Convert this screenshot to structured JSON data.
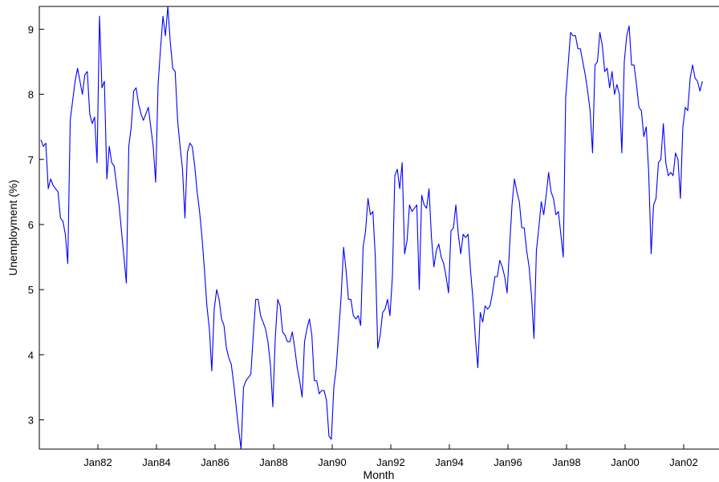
{
  "chart_data": {
    "type": "line",
    "xlabel": "Month",
    "ylabel": "Unemployment (%)",
    "xlim": [
      "1980-01",
      "2002-12"
    ],
    "ylim": [
      2.55,
      9.35
    ],
    "yticks": [
      3,
      4,
      5,
      6,
      7,
      8,
      9
    ],
    "xticks": [
      {
        "label": "Jan82",
        "date": "1982-01"
      },
      {
        "label": "Jan84",
        "date": "1984-01"
      },
      {
        "label": "Jan86",
        "date": "1986-01"
      },
      {
        "label": "Jan88",
        "date": "1988-01"
      },
      {
        "label": "Jan90",
        "date": "1990-01"
      },
      {
        "label": "Jan92",
        "date": "1992-01"
      },
      {
        "label": "Jan94",
        "date": "1994-01"
      },
      {
        "label": "Jan96",
        "date": "1996-01"
      },
      {
        "label": "Jan98",
        "date": "1998-01"
      },
      {
        "label": "Jan00",
        "date": "2000-01"
      },
      {
        "label": "Jan02",
        "date": "2002-01"
      }
    ],
    "grid": false,
    "color": "#0000ff",
    "series": [
      {
        "start": "1980-01",
        "frequency": "monthly",
        "values": [
          7.3,
          7.2,
          7.25,
          6.55,
          6.7,
          6.6,
          6.55,
          6.5,
          6.1,
          6.05,
          5.85,
          5.4,
          7.6,
          7.9,
          8.2,
          8.4,
          8.2,
          8.0,
          8.3,
          8.35,
          7.7,
          7.55,
          7.65,
          6.95,
          9.2,
          8.1,
          8.2,
          6.7,
          7.2,
          6.95,
          6.9,
          6.6,
          6.3,
          5.9,
          5.5,
          5.1,
          7.2,
          7.5,
          8.05,
          8.1,
          7.85,
          7.7,
          7.6,
          7.7,
          7.8,
          7.5,
          7.2,
          6.65,
          8.15,
          8.7,
          9.2,
          8.9,
          9.35,
          8.8,
          8.4,
          8.35,
          7.6,
          7.2,
          6.85,
          6.1,
          7.1,
          7.25,
          7.2,
          6.9,
          6.5,
          6.2,
          5.8,
          5.3,
          4.75,
          4.4,
          3.75,
          4.7,
          5.0,
          4.85,
          4.55,
          4.45,
          4.1,
          3.95,
          3.85,
          3.55,
          3.2,
          2.85,
          2.55,
          3.5,
          3.6,
          3.65,
          3.7,
          4.3,
          4.85,
          4.85,
          4.6,
          4.5,
          4.4,
          4.2,
          3.85,
          3.2,
          4.25,
          4.85,
          4.75,
          4.35,
          4.3,
          4.2,
          4.2,
          4.35,
          4.1,
          3.8,
          3.6,
          3.35,
          4.2,
          4.4,
          4.55,
          4.3,
          3.6,
          3.6,
          3.4,
          3.45,
          3.45,
          3.3,
          2.75,
          2.7,
          3.5,
          3.8,
          4.35,
          4.9,
          5.65,
          5.3,
          4.85,
          4.85,
          4.6,
          4.55,
          4.6,
          4.45,
          5.65,
          5.9,
          6.4,
          6.15,
          6.2,
          5.5,
          4.1,
          4.3,
          4.65,
          4.7,
          4.85,
          4.6,
          5.2,
          6.75,
          6.85,
          6.55,
          6.95,
          5.55,
          5.75,
          6.3,
          6.2,
          6.25,
          6.3,
          5.0,
          6.45,
          6.3,
          6.25,
          6.55,
          5.8,
          5.35,
          5.6,
          5.7,
          5.5,
          5.4,
          5.2,
          4.95,
          5.9,
          5.95,
          6.3,
          5.85,
          5.55,
          5.85,
          5.8,
          5.85,
          5.3,
          4.85,
          4.25,
          3.8,
          4.65,
          4.5,
          4.75,
          4.7,
          4.75,
          4.95,
          5.2,
          5.2,
          5.45,
          5.35,
          5.2,
          4.95,
          5.65,
          6.3,
          6.7,
          6.5,
          6.35,
          5.95,
          5.95,
          5.6,
          5.35,
          4.9,
          4.25,
          5.6,
          5.95,
          6.35,
          6.15,
          6.45,
          6.8,
          6.5,
          6.4,
          6.15,
          6.2,
          5.85,
          5.5,
          7.95,
          8.45,
          8.95,
          8.9,
          8.9,
          8.7,
          8.7,
          8.5,
          8.3,
          8.05,
          7.75,
          7.1,
          8.45,
          8.5,
          8.95,
          8.75,
          8.35,
          8.4,
          8.1,
          8.35,
          8.0,
          8.15,
          8.0,
          7.1,
          8.5,
          8.9,
          9.05,
          8.45,
          8.45,
          8.15,
          7.8,
          7.75,
          7.35,
          7.5,
          6.8,
          5.55,
          6.3,
          6.4,
          6.95,
          7.0,
          7.55,
          6.95,
          6.75,
          6.8,
          6.75,
          7.1,
          7.0,
          6.4,
          7.5,
          7.8,
          7.75,
          8.25,
          8.45,
          8.25,
          8.2,
          8.05,
          8.2
        ]
      }
    ]
  }
}
